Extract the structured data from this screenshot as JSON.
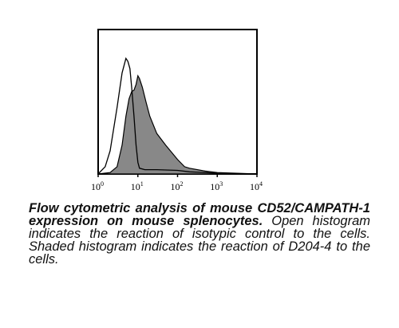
{
  "chart_data": {
    "type": "area",
    "title": "",
    "xlabel": "",
    "ylabel": "",
    "xscale": "log",
    "xlim": [
      1,
      10000
    ],
    "ylim": [
      0,
      1
    ],
    "grid": false,
    "x_ticks": [
      {
        "base": "10",
        "exp": "0"
      },
      {
        "base": "10",
        "exp": "1"
      },
      {
        "base": "10",
        "exp": "2"
      },
      {
        "base": "10",
        "exp": "3"
      },
      {
        "base": "10",
        "exp": "4"
      }
    ],
    "series": [
      {
        "style": "open",
        "color": "#000000",
        "points": [
          [
            1,
            0.0
          ],
          [
            1.5,
            0.05
          ],
          [
            2,
            0.16
          ],
          [
            3,
            0.46
          ],
          [
            4,
            0.7
          ],
          [
            5,
            0.8
          ],
          [
            5.6,
            0.78
          ],
          [
            6.3,
            0.73
          ],
          [
            7,
            0.6
          ],
          [
            8,
            0.4
          ],
          [
            9,
            0.2
          ],
          [
            10,
            0.08
          ],
          [
            11,
            0.04
          ],
          [
            15,
            0.03
          ],
          [
            30,
            0.03
          ],
          [
            100,
            0.025
          ],
          [
            200,
            0.015
          ],
          [
            500,
            0.01
          ],
          [
            1000,
            0.005
          ],
          [
            10000,
            0.0
          ]
        ]
      },
      {
        "style": "shaded",
        "color": "#888888",
        "points": [
          [
            1,
            0.0
          ],
          [
            2,
            0.01
          ],
          [
            3,
            0.05
          ],
          [
            4,
            0.2
          ],
          [
            5,
            0.4
          ],
          [
            6,
            0.52
          ],
          [
            7,
            0.57
          ],
          [
            8,
            0.58
          ],
          [
            9,
            0.62
          ],
          [
            10,
            0.68
          ],
          [
            11,
            0.66
          ],
          [
            13,
            0.6
          ],
          [
            16,
            0.5
          ],
          [
            20,
            0.4
          ],
          [
            30,
            0.28
          ],
          [
            50,
            0.2
          ],
          [
            100,
            0.1
          ],
          [
            150,
            0.05
          ],
          [
            200,
            0.04
          ],
          [
            500,
            0.02
          ],
          [
            1000,
            0.01
          ],
          [
            10000,
            0.0
          ]
        ]
      }
    ]
  },
  "caption": {
    "bold": "Flow cytometric analysis of mouse CD52/CAMPATH-1 expression on mouse splenocytes.",
    "text": " Open histogram indicates the reaction of isotypic control to the cells. Shaded histogram indicates the reaction of D204-4 to the cells."
  },
  "colors": {
    "axis": "#000000",
    "shaded_fill": "#888888",
    "open_line": "#000000"
  }
}
